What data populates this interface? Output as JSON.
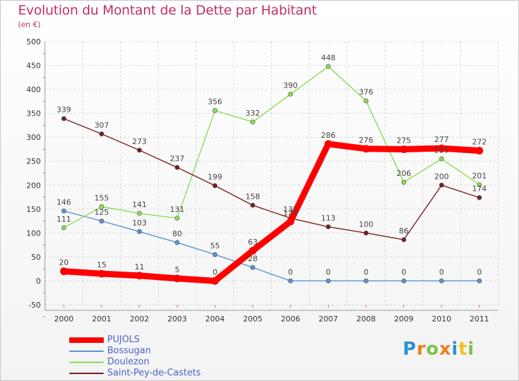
{
  "chart_data": {
    "type": "line",
    "title": "Evolution du Montant de la Dette par Habitant",
    "subtitle": "(en €)",
    "x": [
      "2000",
      "2001",
      "2002",
      "2003",
      "2004",
      "2005",
      "2006",
      "2007",
      "2008",
      "2009",
      "2010",
      "2011"
    ],
    "yticks": [
      -50,
      0,
      50,
      100,
      150,
      200,
      250,
      300,
      350,
      400,
      450,
      500
    ],
    "ylim": [
      -50,
      500
    ],
    "grid": true,
    "legend_position": "bottom-left",
    "series": [
      {
        "name": "PUJOLS",
        "color": "#ff0000",
        "values": [
          20,
          15,
          11,
          5,
          0,
          63,
          124,
          286,
          276,
          275,
          277,
          272
        ],
        "labels": [
          "20",
          "15",
          "11",
          "5",
          "0",
          "63",
          "124",
          "286",
          "276",
          "275",
          "277",
          "272"
        ]
      },
      {
        "name": "Bossugan",
        "color": "#5b93cf",
        "values": [
          146,
          125,
          103,
          80,
          55,
          28,
          0,
          0,
          0,
          0,
          0,
          0
        ],
        "labels": [
          "146",
          "125",
          "103",
          "80",
          "55",
          "28",
          "0",
          "0",
          "0",
          "0",
          "0",
          "0"
        ]
      },
      {
        "name": "Doulezon",
        "color": "#88dd55",
        "values": [
          111,
          155,
          141,
          131,
          356,
          332,
          390,
          448,
          376,
          206,
          255,
          201
        ],
        "labels": [
          "111",
          "155",
          "141",
          "131",
          "356",
          "332",
          "390",
          "448",
          "376",
          "206",
          "255",
          "201"
        ]
      },
      {
        "name": "Saint-Pey-de-Castets",
        "color": "#7a1e1e",
        "values": [
          339,
          307,
          273,
          237,
          199,
          158,
          131,
          113,
          100,
          86,
          200,
          174
        ],
        "labels": [
          "339",
          "307",
          "273",
          "237",
          "199",
          "158",
          "131",
          "113",
          "100",
          "86",
          "200",
          "174"
        ]
      }
    ]
  },
  "brand": {
    "letters": [
      "P",
      "r",
      "o",
      "x",
      "i",
      "t",
      "i"
    ],
    "colors": [
      "#2f8fd8",
      "#f07d1a",
      "#7cc246",
      "#f07d1a",
      "#2f8fd8",
      "#f0c419",
      "#7cc246"
    ]
  }
}
